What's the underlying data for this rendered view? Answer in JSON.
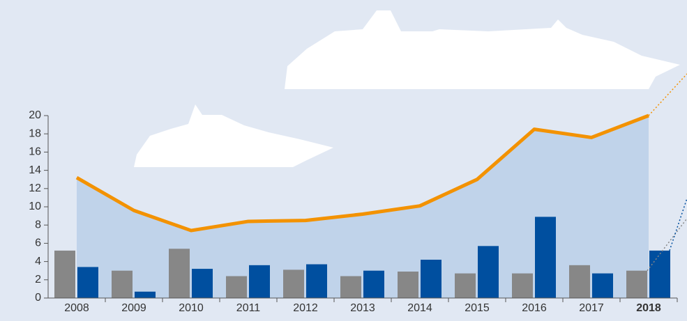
{
  "chart_data": {
    "type": "bar_line_area",
    "categories": [
      "2008",
      "2009",
      "2010",
      "2011",
      "2012",
      "2013",
      "2014",
      "2015",
      "2016",
      "2017",
      "2018"
    ],
    "series": [
      {
        "type": "bar",
        "color": "#878787",
        "values": [
          5.2,
          3.0,
          5.4,
          2.4,
          3.1,
          2.4,
          2.9,
          2.7,
          2.7,
          3.6,
          3.0
        ]
      },
      {
        "type": "bar",
        "color": "#004f9f",
        "values": [
          3.4,
          0.7,
          3.2,
          3.6,
          3.7,
          3.0,
          4.2,
          5.7,
          8.9,
          2.7,
          5.2
        ]
      },
      {
        "type": "line",
        "color": "#f39200",
        "area_color": "#c0d3ea",
        "values": [
          13.2,
          9.6,
          7.4,
          8.4,
          8.5,
          9.2,
          10.1,
          13.0,
          18.5,
          17.6,
          20.0
        ]
      }
    ],
    "ylim": [
      0,
      20
    ],
    "yticks": [
      0,
      2,
      4,
      6,
      8,
      10,
      12,
      14,
      16,
      18,
      20
    ],
    "bold_last_category": true
  }
}
